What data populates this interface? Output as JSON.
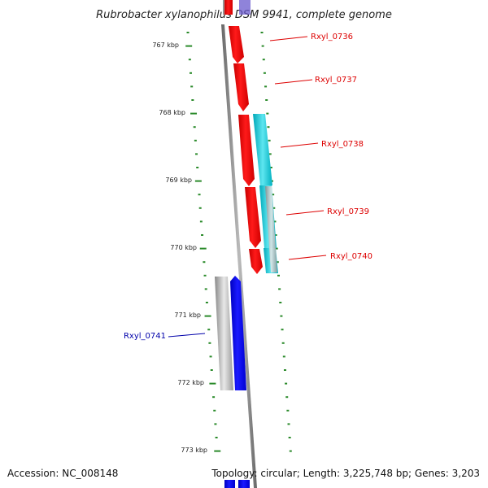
{
  "title": "Rubrobacter xylanophilus DSM 9941, complete genome",
  "accession_text": "Accession: NC_008148",
  "summary_text": "Topology: circular; Length: 3,225,748 bp; Genes: 3,203",
  "kbp_ticks": [
    "767 kbp",
    "768 kbp",
    "769 kbp",
    "770 kbp",
    "771 kbp",
    "772 kbp",
    "773 kbp"
  ],
  "genes": [
    {
      "name": "Rxyl_0736",
      "color": "#dd0000"
    },
    {
      "name": "Rxyl_0737",
      "color": "#dd0000"
    },
    {
      "name": "Rxyl_0738",
      "color": "#dd0000"
    },
    {
      "name": "Rxyl_0739",
      "color": "#dd0000"
    },
    {
      "name": "Rxyl_0740",
      "color": "#dd0000"
    },
    {
      "name": "Rxyl_0741",
      "color": "#0000aa"
    }
  ],
  "colors": {
    "forward_gene": "#ff0000",
    "reverse_gene": "#0000ff",
    "cds_feature": "#00c8d8",
    "grey_feature": "#b0b0b0",
    "backbone": "#888888",
    "tick": "#2a8a2a"
  }
}
